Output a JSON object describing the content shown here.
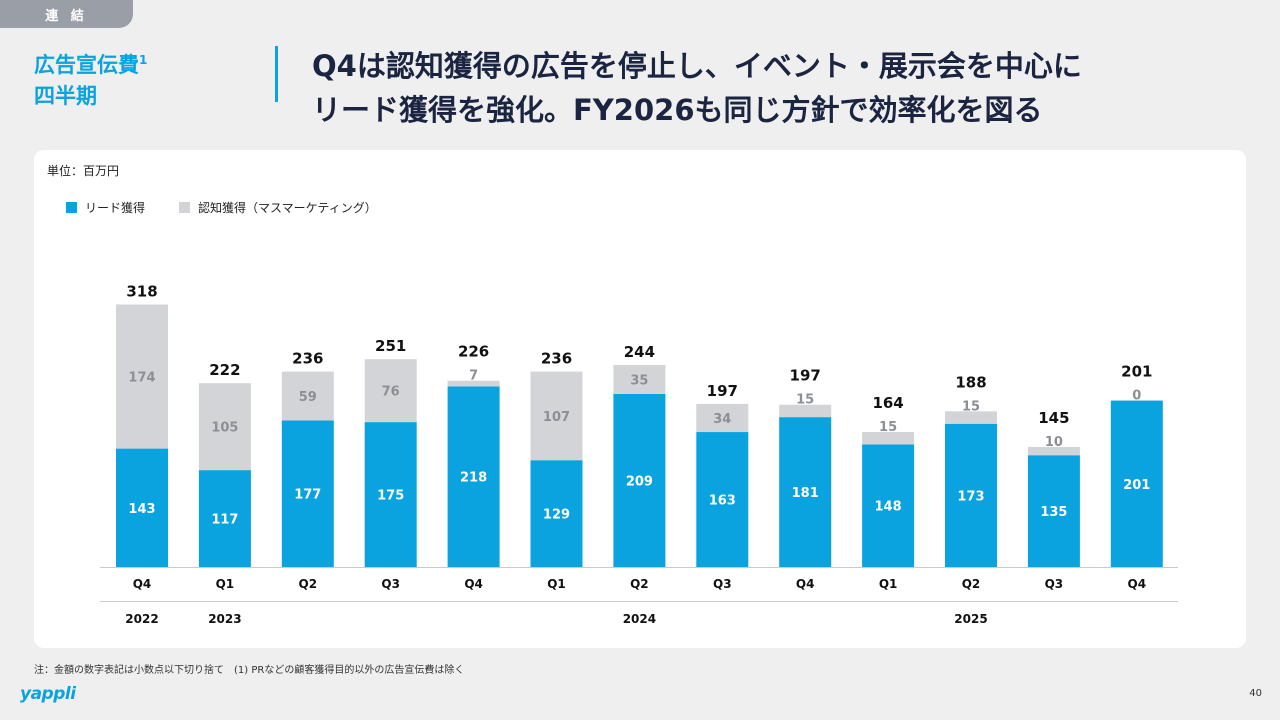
{
  "header": {
    "tag": "連 結",
    "section_title_line1": "広告宣伝費",
    "section_title_sup": "1",
    "section_title_line2": "四半期",
    "headline_line1": "Q4は認知獲得の広告を停止し、イベント・展示会を中心に",
    "headline_line2": "リード獲得を強化。FY2026も同じ方針で効率化を図る"
  },
  "unit_label": "単位：百万円",
  "legend": {
    "lead": "リード獲得",
    "awareness": "認知獲得（マスマーケティング）"
  },
  "colors": {
    "lead": "#0aa3e0",
    "awareness": "#d3d4d8",
    "accent": "#0aa3e0"
  },
  "chart_data": {
    "type": "bar",
    "stacked": true,
    "title": "",
    "ylabel": "百万円",
    "categories": [
      "Q4",
      "Q1",
      "Q2",
      "Q3",
      "Q4",
      "Q1",
      "Q2",
      "Q3",
      "Q4",
      "Q1",
      "Q2",
      "Q3",
      "Q4"
    ],
    "years": [
      {
        "label": "2022",
        "index": 0
      },
      {
        "label": "2023",
        "index": 1
      },
      {
        "label": "2024",
        "index": 6
      },
      {
        "label": "2025",
        "index": 10
      }
    ],
    "series": [
      {
        "name": "リード獲得",
        "values": [
          143,
          117,
          177,
          175,
          218,
          129,
          209,
          163,
          181,
          148,
          173,
          135,
          201
        ]
      },
      {
        "name": "認知獲得（マスマーケティング）",
        "values": [
          174,
          105,
          59,
          76,
          7,
          107,
          35,
          34,
          15,
          15,
          15,
          10,
          0
        ]
      }
    ],
    "totals": [
      318,
      222,
      236,
      251,
      226,
      236,
      244,
      197,
      197,
      164,
      188,
      145,
      201
    ],
    "ylim": [
      0,
      330
    ]
  },
  "footnote": "注：金額の数字表記は小数点以下切り捨て　(1) PRなどの顧客獲得目的以外の広告宣伝費は除く",
  "logo": "yappli",
  "page_number": "40"
}
